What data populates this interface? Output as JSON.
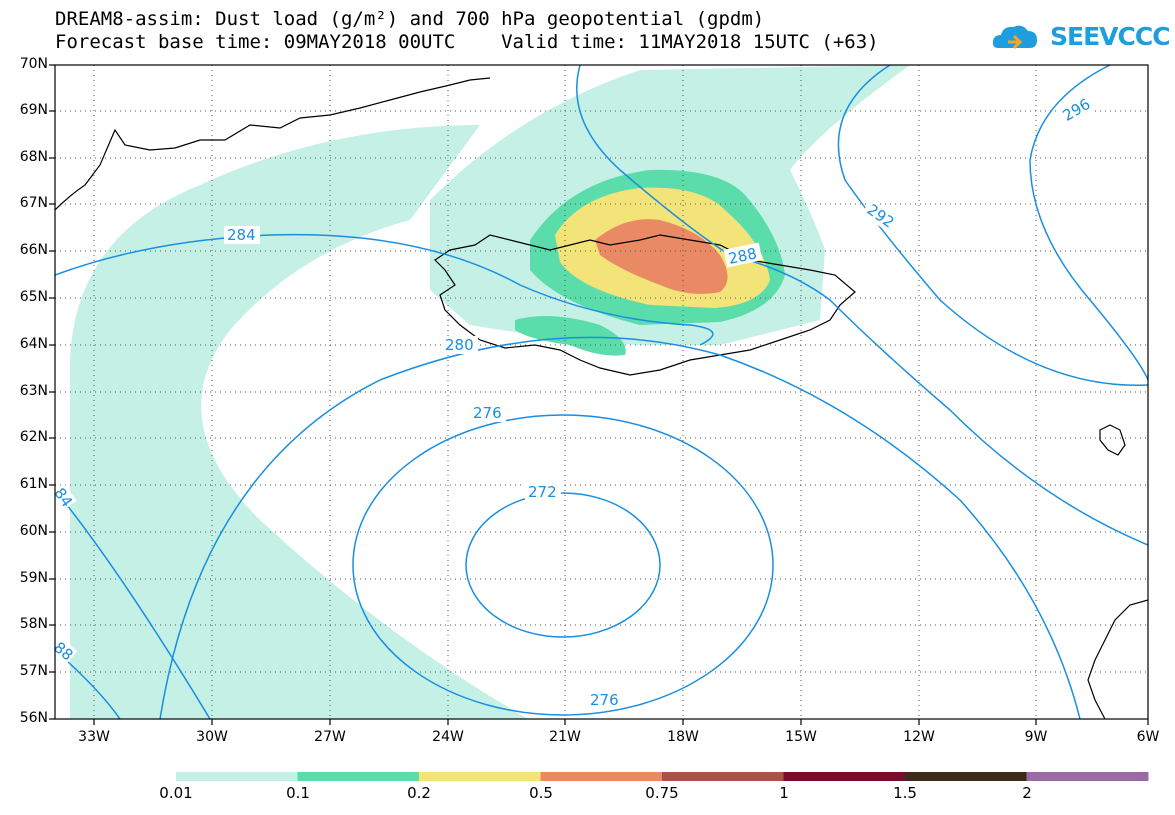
{
  "title": {
    "line1": "DREAM8-assim: Dust load (g/m²) and 700 hPa geopotential (gpdm)",
    "line2": "Forecast base time: 09MAY2018 00UTC    Valid time: 11MAY2018 15UTC (+63)"
  },
  "logo": {
    "text": "SEEVCCC",
    "icon": "cloud-icon"
  },
  "map": {
    "lat_labels": [
      "70N",
      "69N",
      "68N",
      "67N",
      "66N",
      "65N",
      "64N",
      "63N",
      "62N",
      "61N",
      "60N",
      "59N",
      "58N",
      "57N",
      "56N"
    ],
    "lon_labels": [
      "33W",
      "30W",
      "27W",
      "24W",
      "21W",
      "18W",
      "15W",
      "12W",
      "9W",
      "6W"
    ],
    "contour_labels": [
      "296",
      "292",
      "288",
      "284",
      "280",
      "276",
      "272",
      "276",
      "84",
      "88"
    ],
    "colors": {
      "contour": "#1a8ee0",
      "ocean": "#ffffff",
      "coast": "#000000"
    }
  },
  "legend": {
    "labels": [
      "0.01",
      "0.1",
      "0.2",
      "0.5",
      "0.75",
      "1",
      "1.5",
      "2"
    ],
    "colors": [
      "#c4f0e6",
      "#5bdcab",
      "#f3e47a",
      "#ea8a64",
      "#a85346",
      "#7a0c2c",
      "#3d2a18",
      "#996aa5"
    ]
  }
}
